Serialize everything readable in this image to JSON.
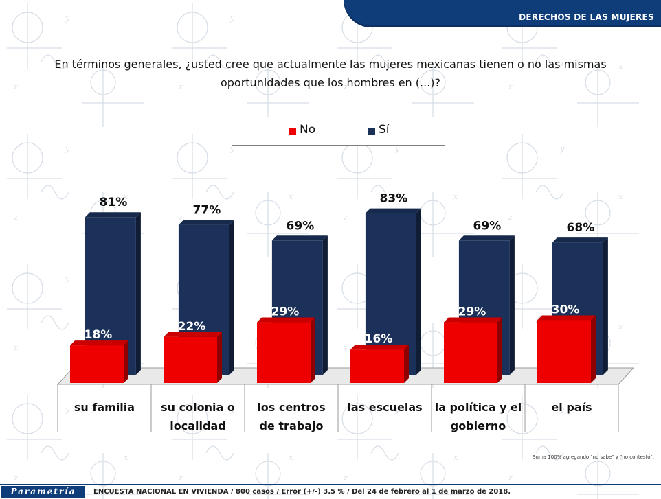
{
  "header": {
    "section_title": "DERECHOS DE LAS MUJERES"
  },
  "question": "En términos generales, ¿usted cree que actualmente las mujeres mexicanas tienen o no las mismas oportunidades que los hombres en (...)?",
  "legend": [
    {
      "label": "No",
      "color": "#ee0000"
    },
    {
      "label": "Sí",
      "color": "#1b3159"
    }
  ],
  "chart_data": {
    "type": "bar",
    "categories": [
      "su familia",
      "su colonia o localidad",
      "los centros de trabajo",
      "las escuelas",
      "la política y el gobierno",
      "el país"
    ],
    "category_lines": [
      [
        "su familia"
      ],
      [
        "su colonia o",
        "localidad"
      ],
      [
        "los centros",
        "de trabajo"
      ],
      [
        "las escuelas"
      ],
      [
        "la política y el",
        "gobierno"
      ],
      [
        "el país"
      ]
    ],
    "series": [
      {
        "name": "No",
        "values": [
          18,
          22,
          29,
          16,
          29,
          30
        ],
        "labels": [
          "18%",
          "22%",
          "29%",
          "16%",
          "29%",
          "30%"
        ],
        "color": "#ee0000"
      },
      {
        "name": "Sí",
        "values": [
          81,
          77,
          69,
          83,
          69,
          68
        ],
        "labels": [
          "81%",
          "77%",
          "69%",
          "83%",
          "69%",
          "68%"
        ],
        "color": "#1b3159"
      }
    ],
    "ylim": [
      0,
      100
    ],
    "grid": false,
    "legend_position": "top-center"
  },
  "note": "Suma 100% agregando \"no sabe\" y \"no contestó\".",
  "footer": {
    "brand": "Parametría",
    "text": "ENCUESTA NACIONAL EN VIVIENDA / 800 casos / Error (+/-) 3.5 % / Del 24 de febrero al 1 de marzo de 2018."
  }
}
